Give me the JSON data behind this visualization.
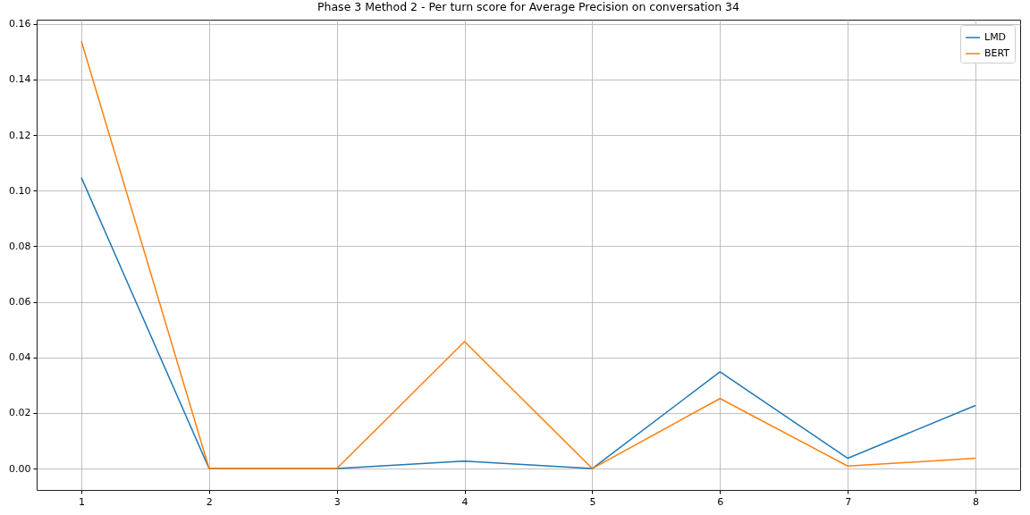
{
  "chart_data": {
    "type": "line",
    "title": "Phase 3 Method 2 - Per turn score for Average Precision on conversation 34",
    "x": [
      1,
      2,
      3,
      4,
      5,
      6,
      7,
      8
    ],
    "series": [
      {
        "name": "LMD",
        "color": "#1f77b4",
        "values": [
          0.1047,
          0,
          0,
          0.0027,
          0,
          0.0348,
          0.0037,
          0.0227
        ]
      },
      {
        "name": "BERT",
        "color": "#ff7f0e",
        "values": [
          0.1538,
          0,
          0,
          0.0457,
          0,
          0.0252,
          0.0009,
          0.0037
        ]
      }
    ],
    "xlim": [
      0.65,
      8.35
    ],
    "xticks": [
      1,
      2,
      3,
      4,
      5,
      6,
      7,
      8
    ],
    "ylim": [
      -0.0077,
      0.1615
    ],
    "yticks": [
      {
        "value": 0,
        "label": "0.00"
      },
      {
        "value": 0.02,
        "label": "0.02"
      },
      {
        "value": 0.04,
        "label": "0.04"
      },
      {
        "value": 0.06,
        "label": "0.06"
      },
      {
        "value": 0.08,
        "label": "0.08"
      },
      {
        "value": 0.1,
        "label": "0.10"
      },
      {
        "value": 0.12,
        "label": "0.12"
      },
      {
        "value": 0.14,
        "label": "0.14"
      },
      {
        "value": 0.16,
        "label": "0.16"
      }
    ],
    "grid": true,
    "legend": "top right"
  }
}
